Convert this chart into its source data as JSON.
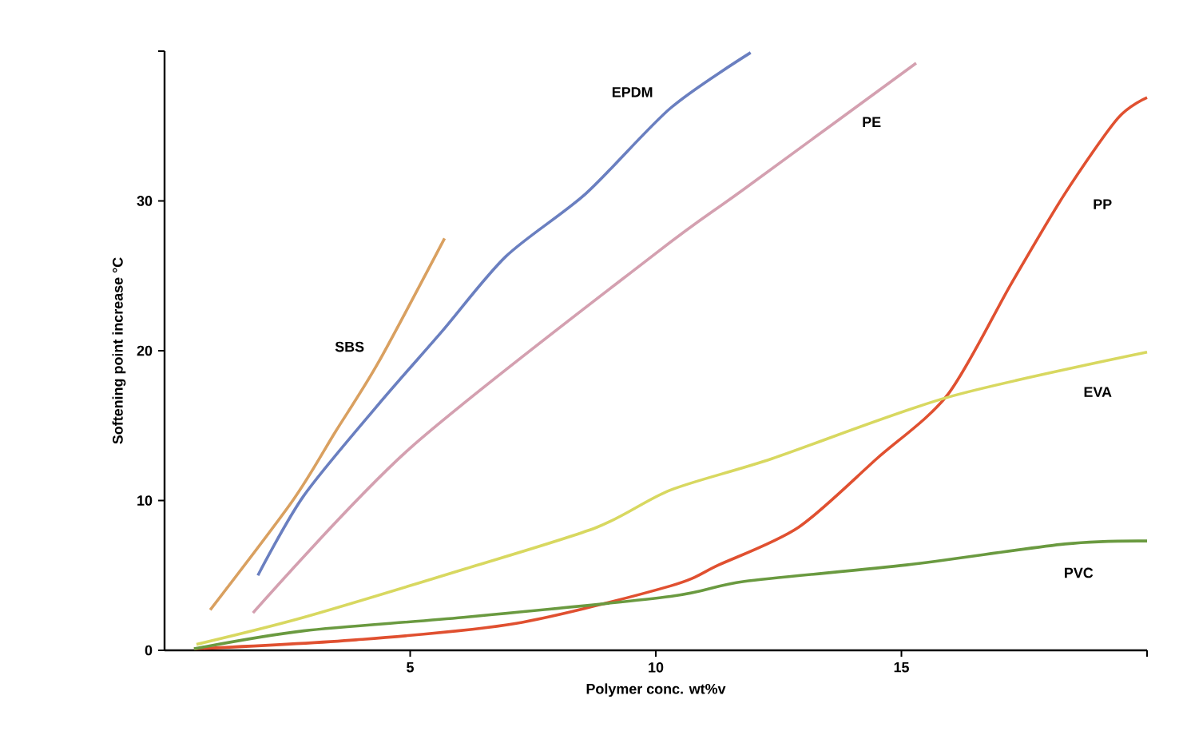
{
  "chart_data": {
    "type": "line",
    "xlabel": "Polymer conc. wt%v",
    "ylabel": "Softening point increase °C",
    "xlim": [
      0,
      20
    ],
    "ylim": [
      0,
      40
    ],
    "xticks": [
      5,
      10,
      15,
      {
        "value": 20,
        "label": null
      }
    ],
    "yticks": [
      0,
      10,
      20,
      30,
      {
        "value": 40,
        "label": null
      }
    ],
    "grid": false,
    "legend": false,
    "marker": "none",
    "line_style": "solid",
    "series": [
      {
        "name": "SBS",
        "color": "#d9a060",
        "x": [
          0.93,
          2.61,
          3.48,
          4.35,
          5.7
        ],
        "values": [
          2.7,
          10.0,
          14.6,
          19.2,
          27.5
        ]
      },
      {
        "name": "EPDM",
        "color": "#6a7fc0",
        "x": [
          1.9,
          2.83,
          4.35,
          5.65,
          6.95,
          8.58,
          10.3,
          11.93
        ],
        "values": [
          5.0,
          10.3,
          16.4,
          21.3,
          26.3,
          30.5,
          36.2,
          39.9
        ]
      },
      {
        "name": "PE",
        "color": "#d4a0b0",
        "x": [
          1.8,
          5.0,
          10.0,
          11.8,
          15.3
        ],
        "values": [
          2.5,
          13.5,
          26.5,
          30.8,
          39.2
        ]
      },
      {
        "name": "PP",
        "color": "#e05030",
        "x": [
          0.6,
          3.9,
          7.16,
          10.3,
          11.28,
          12.9,
          14.5,
          15.95,
          17.24,
          18.33,
          19.4,
          20
        ],
        "values": [
          0.1,
          0.7,
          1.8,
          4.3,
          5.7,
          8.2,
          12.8,
          17.1,
          24.5,
          30.5,
          35.5,
          36.9
        ]
      },
      {
        "name": "EVA",
        "color": "#d8d860",
        "x": [
          0.65,
          2.83,
          6.08,
          8.79,
          10.3,
          12.37,
          15.95,
          20
        ],
        "values": [
          0.4,
          2.2,
          5.4,
          8.2,
          10.7,
          12.8,
          16.9,
          19.9
        ]
      },
      {
        "name": "PVC",
        "color": "#6a9a40",
        "x": [
          0.6,
          2.83,
          6.08,
          10.3,
          11.8,
          15.1,
          18.33,
          20
        ],
        "values": [
          0.1,
          1.3,
          2.2,
          3.6,
          4.6,
          5.7,
          7.1,
          7.3
        ]
      }
    ]
  }
}
